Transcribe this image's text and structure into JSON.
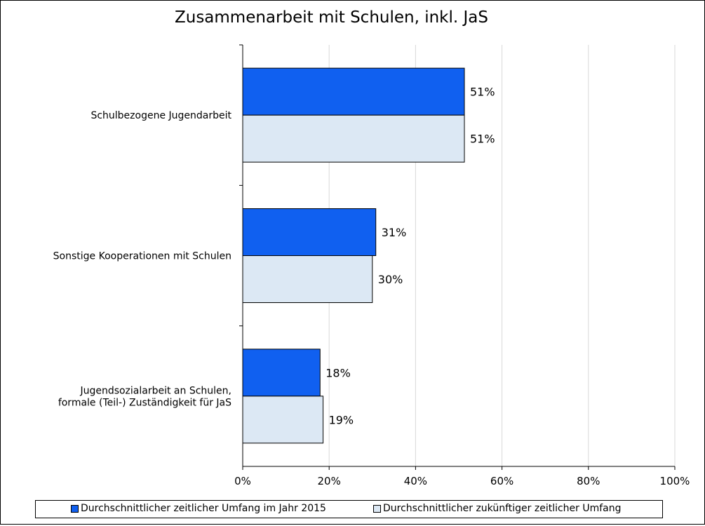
{
  "chart_data": {
    "type": "bar",
    "orientation": "horizontal",
    "title": "Zusammenarbeit mit Schulen, inkl. JaS",
    "categories": [
      [
        "Schulbezogene Jugendarbeit"
      ],
      [
        "Sonstige Kooperationen mit Schulen"
      ],
      [
        "Jugendsozialarbeit an Schulen,",
        "formale (Teil-) Zuständigkeit für JaS"
      ]
    ],
    "series": [
      {
        "name": "Durchschnittlicher zeitlicher Umfang im Jahr 2015",
        "color": "#1060f0",
        "values": [
          51.3,
          30.8,
          17.9
        ],
        "labels": [
          "51%",
          "31%",
          "18%"
        ]
      },
      {
        "name": "Durchschnittlicher zukünftiger zeitlicher Umfang",
        "color": "#dce8f4",
        "values": [
          51.3,
          30.0,
          18.6
        ],
        "labels": [
          "51%",
          "30%",
          "19%"
        ]
      }
    ],
    "xlim": [
      0,
      100
    ],
    "xticks": [
      0,
      20,
      40,
      60,
      80,
      100
    ],
    "xtick_labels": [
      "0%",
      "20%",
      "40%",
      "60%",
      "80%",
      "100%"
    ],
    "xlabel": "",
    "ylabel": "",
    "grid": true,
    "legend_position": "bottom"
  }
}
